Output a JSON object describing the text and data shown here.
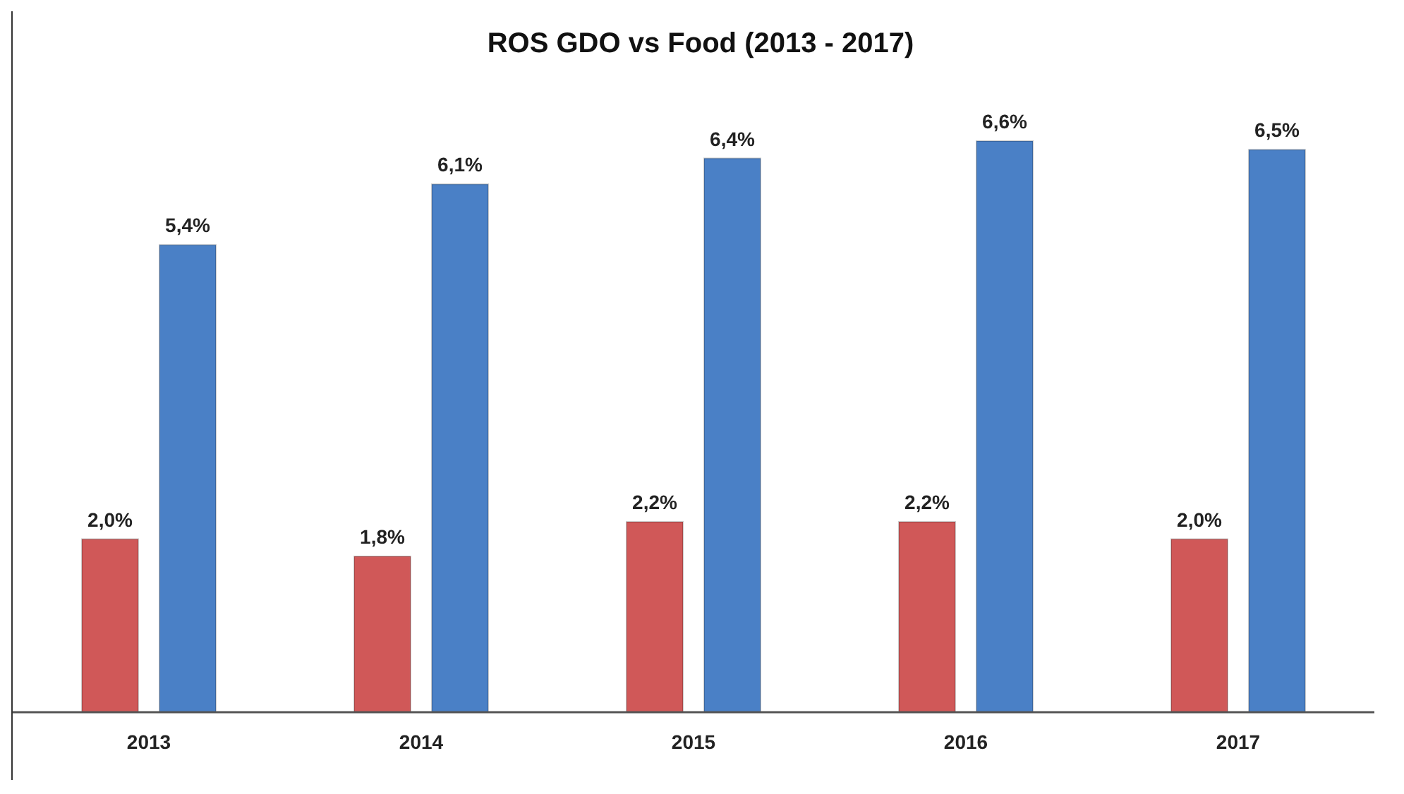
{
  "chart_data": {
    "type": "bar",
    "title": "ROS GDO vs Food (2013 - 2017)",
    "categories": [
      "2013",
      "2014",
      "2015",
      "2016",
      "2017"
    ],
    "series": [
      {
        "color": "#d05858",
        "values": [
          2.0,
          1.8,
          2.2,
          2.2,
          2.0
        ],
        "value_labels": [
          "2,0%",
          "1,8%",
          "2,2%",
          "2,2%",
          "2,0%"
        ]
      },
      {
        "color": "#4a80c6",
        "values": [
          5.4,
          6.1,
          6.4,
          6.6,
          6.5
        ],
        "value_labels": [
          "5,4%",
          "6,1%",
          "6,4%",
          "6,6%",
          "6,5%"
        ]
      }
    ],
    "legend": false,
    "grid": false
  }
}
